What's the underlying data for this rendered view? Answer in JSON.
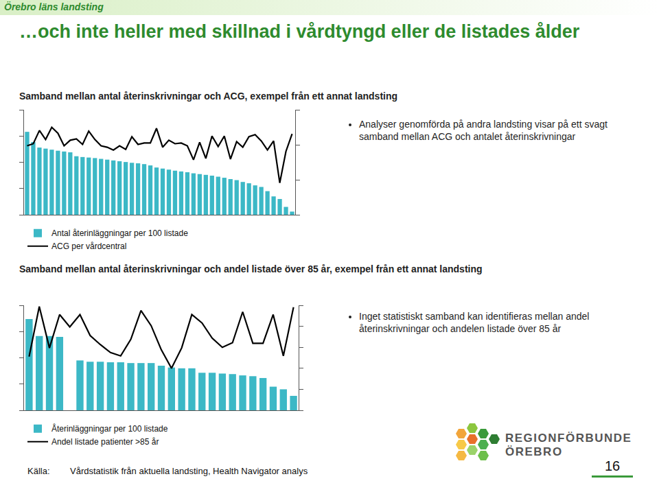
{
  "header": "Örebro läns landsting",
  "title": "…och inte heller med skillnad i vårdtyngd eller de listades ålder",
  "chart_data": [
    {
      "type": "bar",
      "title": "Samband mellan antal återinskrivningar och ACG, exempel från ett annat landsting",
      "annotations": [
        "Analyser genomförda på andra landsting visar på ett svagt samband mellan ACG och antalet återinskrivningar"
      ],
      "categories": [
        null,
        null,
        null,
        null,
        null,
        null,
        null,
        null,
        null,
        null,
        null,
        null,
        null,
        null,
        null,
        null,
        null,
        null,
        null,
        null,
        null,
        null,
        null,
        null,
        null,
        null,
        null,
        null,
        null,
        null,
        null,
        null,
        null,
        null,
        null,
        null,
        null,
        null,
        null,
        null,
        null,
        null,
        null,
        null
      ],
      "series": [
        {
          "name": "Antal återinläggningar per 100 listade",
          "type": "bar",
          "color": "#3cb8c6",
          "values": [
            3.16,
            2.77,
            2.56,
            2.52,
            2.48,
            2.44,
            2.41,
            2.38,
            2.23,
            2.2,
            2.18,
            2.16,
            2.13,
            2.1,
            2.07,
            2.04,
            2.01,
            1.98,
            1.96,
            1.93,
            1.88,
            1.8,
            1.76,
            1.72,
            1.68,
            1.65,
            1.62,
            1.58,
            1.55,
            1.52,
            1.49,
            1.45,
            1.41,
            1.36,
            1.32,
            1.25,
            1.2,
            1.12,
            1.06,
            0.9,
            0.7,
            0.6,
            0.3,
            0.12
          ]
        },
        {
          "name": "ACG per vårdcentral",
          "type": "line",
          "color": "#000000",
          "axis": "y2",
          "values": [
            1.97,
            2.03,
            2.41,
            2.15,
            2.5,
            2.33,
            1.97,
            2.13,
            2.17,
            2.01,
            2.39,
            2.15,
            1.97,
            1.93,
            1.85,
            1.97,
            1.87,
            2.23,
            2.01,
            2.05,
            2.05,
            2.47,
            1.93,
            2.13,
            2.03,
            2.05,
            1.97,
            1.57,
            2.07,
            1.61,
            2.25,
            1.95,
            2.25,
            1.59,
            2.09,
            1.93,
            2.23,
            2.29,
            2.11,
            1.85,
            2.11,
            0.91,
            1.81,
            2.31
          ]
        }
      ],
      "ylim": [
        0,
        4
      ],
      "yticks": [
        0,
        1,
        2,
        3,
        4
      ],
      "y2lim": [
        0,
        3
      ],
      "y2ticks": [
        0,
        1,
        2,
        3
      ],
      "tick_labels": false,
      "grid": false,
      "legend": "bottom"
    },
    {
      "type": "bar",
      "title": "Samband mellan antal återinskrivningar och andel listade över 85 år, exempel från ett annat landsting",
      "annotations": [
        "Inget statistiskt samband kan identifieras mellan andel återinskrivningar och andelen listade över 85 år"
      ],
      "categories": [
        null,
        null,
        null,
        null,
        null,
        null,
        null,
        null,
        null,
        null,
        null,
        null,
        null,
        null,
        null,
        null,
        null,
        null,
        null,
        null,
        null,
        null,
        null,
        null,
        null,
        null,
        null
      ],
      "series": [
        {
          "name": "Återinläggningar per 100 listade",
          "type": "bar",
          "color": "#3cb8c6",
          "values": [
            3.48,
            2.83,
            2.83,
            2.8,
            null,
            1.9,
            1.85,
            1.85,
            1.83,
            1.83,
            1.8,
            1.8,
            1.8,
            1.7,
            1.63,
            1.6,
            1.6,
            1.43,
            1.43,
            1.4,
            1.38,
            1.33,
            1.3,
            1.23,
            0.9,
            0.8,
            0.55
          ]
        },
        {
          "name": "Andel listade patienter >85 år",
          "type": "line",
          "color": "#000000",
          "axis": "y2",
          "values": [
            2.56,
            4.94,
            2.97,
            4.56,
            3.97,
            4.56,
            3.56,
            3.13,
            2.75,
            2.59,
            3.38,
            4.75,
            4.03,
            2.88,
            2.0,
            2.97,
            4.56,
            4.16,
            3.44,
            3.0,
            3.22,
            4.69,
            3.19,
            3.19,
            4.56,
            2.59,
            4.91
          ]
        }
      ],
      "ylim": [
        0,
        4
      ],
      "yticks": [
        0,
        1,
        2,
        3,
        4
      ],
      "y2lim": [
        0,
        5
      ],
      "y2ticks": [
        0,
        1,
        2,
        3,
        4,
        5
      ],
      "tick_labels": false,
      "grid": false,
      "legend": "bottom"
    }
  ],
  "source": {
    "label": "Källa:",
    "text": "Vårdstatistik från aktuella landsting, Health Navigator analys"
  },
  "logo": {
    "line1": "REGIONFÖRBUNDET",
    "line2": "ÖREBRO"
  },
  "page": 16
}
